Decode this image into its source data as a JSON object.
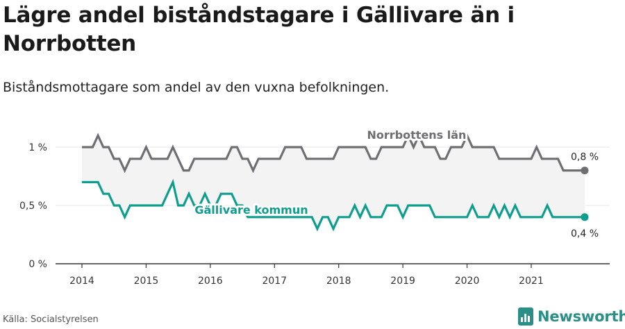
{
  "title": "Lägre andel biståndstagare i Gällivare än i Norrbotten",
  "subtitle": "Biståndsmottagare som andel av den vuxna befolkningen.",
  "source": "Källa: Socialstyrelsen",
  "brand": "Newsworthy",
  "colors": {
    "norrbotten": "#6f6f73",
    "gallivare": "#0f9e8e",
    "band": "#f3f3f3",
    "grid": "#e4e4e4"
  },
  "chart_data": {
    "type": "line",
    "x_start": "2014-01",
    "x_end": "2021-11",
    "x_ticks": [
      2014,
      2015,
      2016,
      2017,
      2018,
      2019,
      2020,
      2021
    ],
    "ylim": [
      0,
      1.0
    ],
    "y_ticks": [
      {
        "value": 0,
        "label": "0 %"
      },
      {
        "value": 0.5,
        "label": "0,5 %"
      },
      {
        "value": 1,
        "label": "1 %"
      }
    ],
    "series": [
      {
        "name": "Norrbottens län",
        "end_label": "0,8 %",
        "values": [
          1.0,
          1.0,
          1.0,
          1.1,
          1.0,
          1.0,
          0.9,
          0.9,
          0.8,
          0.9,
          0.9,
          0.9,
          1.0,
          0.9,
          0.9,
          0.9,
          0.9,
          1.0,
          0.9,
          0.8,
          0.8,
          0.9,
          0.9,
          0.9,
          0.9,
          0.9,
          0.9,
          0.9,
          1.0,
          1.0,
          0.9,
          0.9,
          0.8,
          0.9,
          0.9,
          0.9,
          0.9,
          0.9,
          1.0,
          1.0,
          1.0,
          1.0,
          0.9,
          0.9,
          0.9,
          0.9,
          0.9,
          0.9,
          1.0,
          1.0,
          1.0,
          1.0,
          1.0,
          1.0,
          0.9,
          0.9,
          1.0,
          1.0,
          1.0,
          1.0,
          1.0,
          1.1,
          1.0,
          1.1,
          1.0,
          1.0,
          1.0,
          0.9,
          0.9,
          1.0,
          1.0,
          1.0,
          1.1,
          1.0,
          1.0,
          1.0,
          1.0,
          1.0,
          0.9,
          0.9,
          0.9,
          0.9,
          0.9,
          0.9,
          0.9,
          1.0,
          0.9,
          0.9,
          0.9,
          0.9,
          0.8,
          0.8,
          0.8,
          0.8,
          0.8
        ]
      },
      {
        "name": "Gällivare kommun",
        "end_label": "0,4 %",
        "values": [
          0.7,
          0.7,
          0.7,
          0.7,
          0.6,
          0.6,
          0.5,
          0.5,
          0.4,
          0.5,
          0.5,
          0.5,
          0.5,
          0.5,
          0.5,
          0.5,
          0.6,
          0.7,
          0.5,
          0.5,
          0.6,
          0.5,
          0.5,
          0.6,
          0.5,
          0.5,
          0.6,
          0.6,
          0.6,
          0.5,
          0.5,
          0.4,
          0.4,
          0.4,
          0.4,
          0.4,
          0.4,
          0.4,
          0.4,
          0.4,
          0.4,
          0.4,
          0.4,
          0.4,
          0.3,
          0.4,
          0.4,
          0.3,
          0.4,
          0.4,
          0.4,
          0.5,
          0.4,
          0.5,
          0.4,
          0.4,
          0.4,
          0.5,
          0.5,
          0.5,
          0.4,
          0.5,
          0.5,
          0.5,
          0.5,
          0.5,
          0.4,
          0.4,
          0.4,
          0.4,
          0.4,
          0.4,
          0.4,
          0.5,
          0.4,
          0.4,
          0.4,
          0.5,
          0.4,
          0.5,
          0.4,
          0.5,
          0.4,
          0.4,
          0.4,
          0.4,
          0.4,
          0.5,
          0.4,
          0.4,
          0.4,
          0.4,
          0.4,
          0.4,
          0.4
        ]
      }
    ],
    "grid": true,
    "legend": "inline labels on the lines"
  }
}
